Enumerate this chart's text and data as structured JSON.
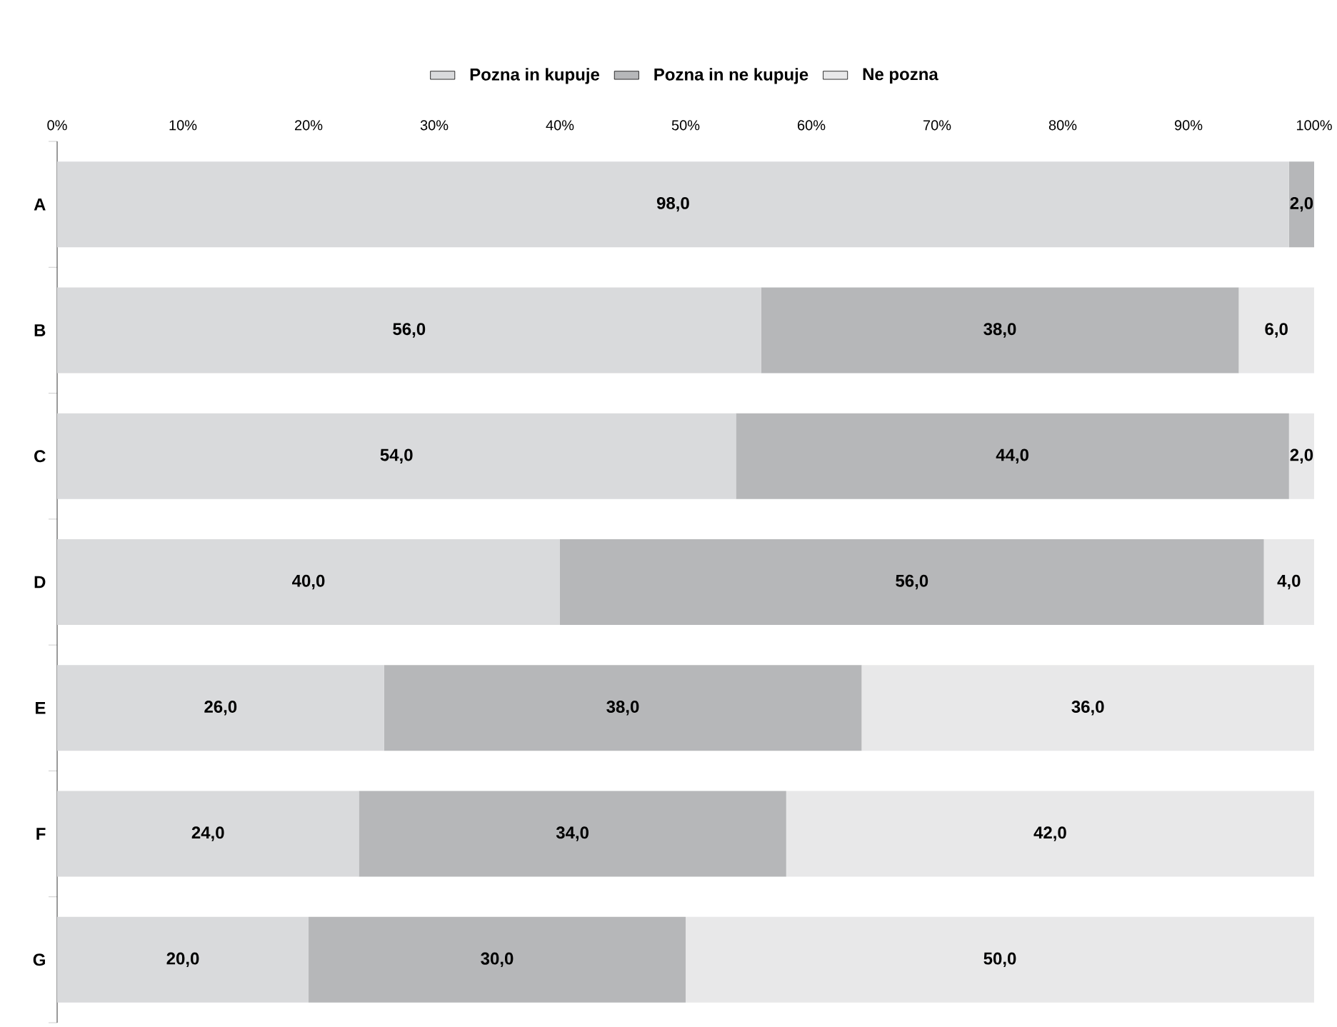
{
  "chart_data": {
    "type": "bar",
    "orientation": "horizontal",
    "stacked": true,
    "legend": "top",
    "categories": [
      "A",
      "B",
      "C",
      "D",
      "E",
      "F",
      "G"
    ],
    "xlim": [
      0,
      100
    ],
    "xticks": [
      {
        "value": 0,
        "label": "0%"
      },
      {
        "value": 10,
        "label": "10%"
      },
      {
        "value": 20,
        "label": "20%"
      },
      {
        "value": 30,
        "label": "30%"
      },
      {
        "value": 40,
        "label": "40%"
      },
      {
        "value": 50,
        "label": "50%"
      },
      {
        "value": 60,
        "label": "60%"
      },
      {
        "value": 70,
        "label": "70%"
      },
      {
        "value": 80,
        "label": "80%"
      },
      {
        "value": 90,
        "label": "90%"
      },
      {
        "value": 100,
        "label": "100%"
      }
    ],
    "series": [
      {
        "name": "Pozna in kupuje",
        "color": "#d9dadc",
        "values": [
          98,
          56,
          54,
          40,
          26,
          24,
          20
        ],
        "value_labels": [
          "98,0",
          "56,0",
          "54,0",
          "40,0",
          "26,0",
          "24,0",
          "20,0"
        ]
      },
      {
        "name": "Pozna in ne kupuje",
        "color": "#b6b7b9",
        "values": [
          2,
          38,
          44,
          56,
          38,
          34,
          30
        ],
        "value_labels": [
          "2,0",
          "38,0",
          "44,0",
          "56,0",
          "38,0",
          "34,0",
          "30,0"
        ]
      },
      {
        "name": "Ne pozna",
        "color": "#e8e8e9",
        "values": [
          0,
          6,
          2,
          4,
          36,
          42,
          50
        ],
        "value_labels": [
          null,
          "6,0",
          "2,0",
          "4,0",
          "36,0",
          "42,0",
          "50,0"
        ]
      }
    ]
  }
}
